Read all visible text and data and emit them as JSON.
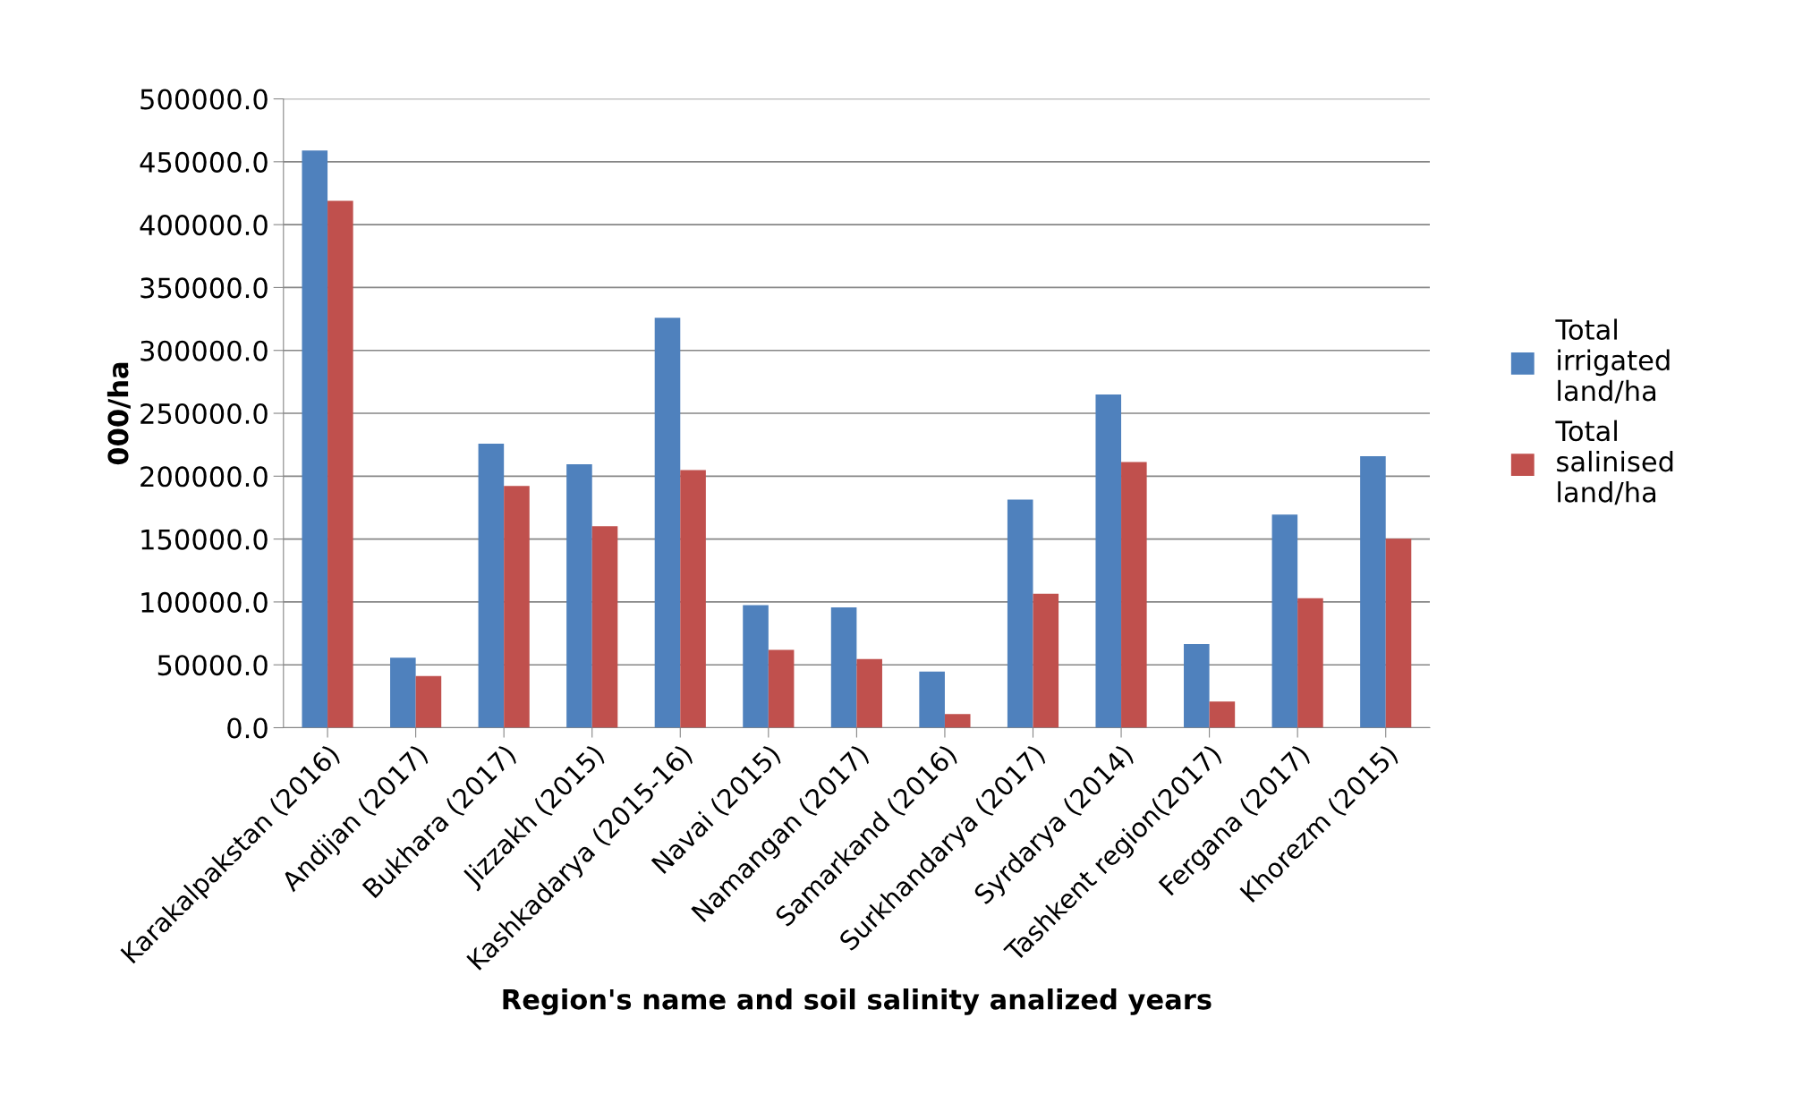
{
  "chart_data": {
    "type": "bar",
    "xlabel": "Region's name and soil salinity analized years",
    "ylabel": "000/ha",
    "categories": [
      "Karakalpakstan (2016)",
      "Andijan (2017)",
      "Bukhara (2017)",
      "Jizzakh (2015)",
      "Kashkadarya (2015-16)",
      "Navai (2015)",
      "Namangan (2017)",
      "Samarkand (2016)",
      "Surkhandarya (2017)",
      "Syrdarya (2014)",
      "Tashkent region(2017)",
      "Fergana (2017)",
      "Khorezm (2015)"
    ],
    "series": [
      {
        "name": "Total irrigated land/ha",
        "color": "#4f81bd",
        "values": [
          459000,
          55600,
          225900,
          209500,
          326000,
          97500,
          95600,
          44600,
          181300,
          265000,
          66500,
          169400,
          215800
        ]
      },
      {
        "name": "Total salinised land/ha",
        "color": "#c0504d",
        "values": [
          419000,
          41000,
          192200,
          160300,
          204900,
          61900,
          54600,
          10900,
          106600,
          211300,
          20900,
          102900,
          150300
        ]
      }
    ],
    "ylim": [
      0,
      500000
    ],
    "yticks": [
      {
        "value": 0,
        "label": "0.0"
      },
      {
        "value": 50000,
        "label": "50000.0"
      },
      {
        "value": 100000,
        "label": "100000.0"
      },
      {
        "value": 150000,
        "label": "150000.0"
      },
      {
        "value": 200000,
        "label": "200000.0"
      },
      {
        "value": 250000,
        "label": "250000.0"
      },
      {
        "value": 300000,
        "label": "300000.0"
      },
      {
        "value": 350000,
        "label": "350000.0"
      },
      {
        "value": 400000,
        "label": "400000.0"
      },
      {
        "value": 450000,
        "label": "450000.0"
      },
      {
        "value": 500000,
        "label": "500000.0"
      }
    ],
    "grid": "y",
    "legend": "right"
  }
}
